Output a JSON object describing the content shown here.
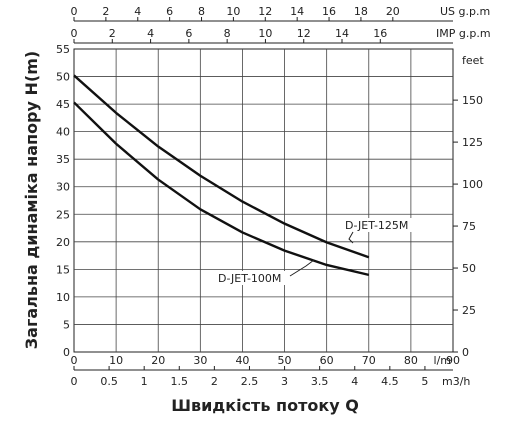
{
  "chart_data": {
    "type": "line",
    "title": "",
    "xlabel": "Швидкість потоку Q",
    "ylabel": "Загальна динаміка напору H(m)",
    "grid": true,
    "xlim": [
      0,
      90
    ],
    "ylim": [
      0,
      55
    ],
    "x_ticks": [
      0,
      10,
      20,
      30,
      40,
      50,
      60,
      70,
      80,
      90
    ],
    "y_ticks": [
      0,
      5,
      10,
      15,
      20,
      25,
      30,
      35,
      40,
      45,
      50,
      55
    ],
    "x_unit": "l/m",
    "top_axes": [
      {
        "unit": "US g.p.m",
        "ticks": [
          0,
          2,
          4,
          6,
          8,
          10,
          12,
          14,
          16,
          18,
          20
        ]
      },
      {
        "unit": "IMP g.p.m",
        "ticks": [
          0,
          2,
          4,
          6,
          8,
          10,
          12,
          14,
          16
        ]
      }
    ],
    "bottom_axis2": {
      "unit": "m3/h",
      "ticks": [
        0,
        0.5,
        1,
        1.5,
        2,
        2.5,
        3,
        3.5,
        4,
        4.5,
        5
      ]
    },
    "right_axis": {
      "unit": "feet",
      "ticks": [
        0,
        25,
        50,
        75,
        100,
        125,
        150
      ]
    },
    "series": [
      {
        "name": "D-JET-125M",
        "color": "#111111",
        "x": [
          0,
          10,
          20,
          30,
          40,
          50,
          60,
          70
        ],
        "y": [
          50.2,
          43.4,
          37.3,
          32.0,
          27.3,
          23.3,
          19.9,
          17.2
        ]
      },
      {
        "name": "D-JET-100M",
        "color": "#111111",
        "x": [
          0,
          10,
          20,
          30,
          40,
          50,
          60,
          70
        ],
        "y": [
          45.3,
          37.8,
          31.3,
          25.9,
          21.7,
          18.4,
          15.8,
          14.0
        ]
      }
    ]
  }
}
